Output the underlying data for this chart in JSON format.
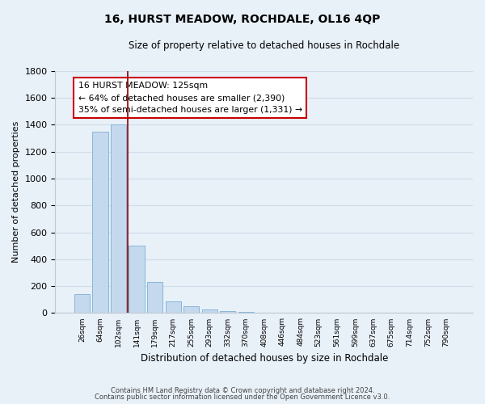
{
  "title": "16, HURST MEADOW, ROCHDALE, OL16 4QP",
  "subtitle": "Size of property relative to detached houses in Rochdale",
  "xlabel": "Distribution of detached houses by size in Rochdale",
  "ylabel": "Number of detached properties",
  "bar_values": [
    140,
    1350,
    1400,
    500,
    230,
    85,
    50,
    25,
    15,
    10,
    0,
    0,
    0,
    0,
    0,
    0,
    0,
    0,
    0,
    0,
    0
  ],
  "bar_labels": [
    "26sqm",
    "64sqm",
    "102sqm",
    "141sqm",
    "179sqm",
    "217sqm",
    "255sqm",
    "293sqm",
    "332sqm",
    "370sqm",
    "408sqm",
    "446sqm",
    "484sqm",
    "523sqm",
    "561sqm",
    "599sqm",
    "637sqm",
    "675sqm",
    "714sqm",
    "752sqm",
    "790sqm"
  ],
  "bar_color": "#c5d9ee",
  "bar_edge_color": "#7aafd4",
  "vline_color": "#8b0000",
  "ylim": [
    0,
    1800
  ],
  "yticks": [
    0,
    200,
    400,
    600,
    800,
    1000,
    1200,
    1400,
    1600,
    1800
  ],
  "annotation_title": "16 HURST MEADOW: 125sqm",
  "annotation_line1": "← 64% of detached houses are smaller (2,390)",
  "annotation_line2": "35% of semi-detached houses are larger (1,331) →",
  "footer1": "Contains HM Land Registry data © Crown copyright and database right 2024.",
  "footer2": "Contains public sector information licensed under the Open Government Licence v3.0.",
  "grid_color": "#d0dce8",
  "background_color": "#e8f0f8"
}
